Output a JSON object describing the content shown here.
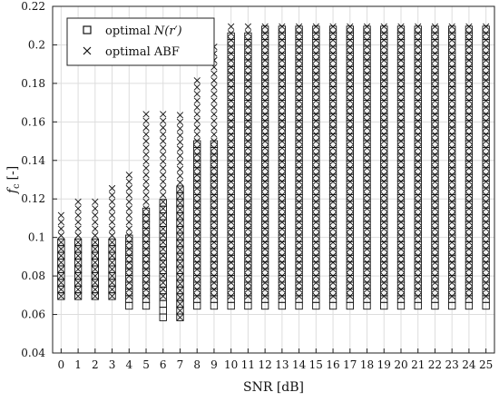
{
  "chart_data": {
    "type": "scatter",
    "title": "",
    "xlabel": "SNR [dB]",
    "ylabel": "f_c [-]",
    "ylabel_main": "f",
    "ylabel_sub": "c",
    "ylabel_unit": "[-]",
    "xlim": [
      -0.5,
      25.5
    ],
    "ylim": [
      0.04,
      0.22
    ],
    "grid": true,
    "legend_position": "top-left",
    "x_ticks": [
      "0",
      "1",
      "2",
      "3",
      "4",
      "5",
      "6",
      "7",
      "8",
      "9",
      "10",
      "11",
      "12",
      "13",
      "14",
      "15",
      "16",
      "17",
      "18",
      "19",
      "20",
      "21",
      "22",
      "23",
      "24",
      "25"
    ],
    "y_ticks": [
      "0.04",
      "0.06",
      "0.08",
      "0.1",
      "0.12",
      "0.14",
      "0.16",
      "0.18",
      "0.2",
      "0.22"
    ],
    "series": [
      {
        "name": "optimal N(r′)",
        "legend_prefix": "optimal ",
        "legend_math": "N(r′)",
        "marker": "square",
        "ranges": [
          {
            "x": 0,
            "y_min": 0.0695,
            "y_max": 0.1005
          },
          {
            "x": 1,
            "y_min": 0.0695,
            "y_max": 0.1005
          },
          {
            "x": 2,
            "y_min": 0.0695,
            "y_max": 0.1005
          },
          {
            "x": 3,
            "y_min": 0.0695,
            "y_max": 0.1005
          },
          {
            "x": 4,
            "y_min": 0.0645,
            "y_max": 0.1005
          },
          {
            "x": 5,
            "y_min": 0.0645,
            "y_max": 0.1155
          },
          {
            "x": 6,
            "y_min": 0.0585,
            "y_max": 0.1205
          },
          {
            "x": 7,
            "y_min": 0.0585,
            "y_max": 0.1255
          },
          {
            "x": 8,
            "y_min": 0.0645,
            "y_max": 0.1505
          },
          {
            "x": 9,
            "y_min": 0.0645,
            "y_max": 0.1505
          },
          {
            "x": 10,
            "y_min": 0.0645,
            "y_max": 0.2055
          },
          {
            "x": 11,
            "y_min": 0.0645,
            "y_max": 0.2055
          },
          {
            "x": 12,
            "y_min": 0.0645,
            "y_max": 0.2105
          },
          {
            "x": 13,
            "y_min": 0.0645,
            "y_max": 0.2105
          },
          {
            "x": 14,
            "y_min": 0.0645,
            "y_max": 0.2105
          },
          {
            "x": 15,
            "y_min": 0.0645,
            "y_max": 0.2105
          },
          {
            "x": 16,
            "y_min": 0.0645,
            "y_max": 0.2105
          },
          {
            "x": 17,
            "y_min": 0.0645,
            "y_max": 0.2105
          },
          {
            "x": 18,
            "y_min": 0.0645,
            "y_max": 0.2105
          },
          {
            "x": 19,
            "y_min": 0.0645,
            "y_max": 0.2105
          },
          {
            "x": 20,
            "y_min": 0.0645,
            "y_max": 0.2105
          },
          {
            "x": 21,
            "y_min": 0.0645,
            "y_max": 0.2105
          },
          {
            "x": 22,
            "y_min": 0.0645,
            "y_max": 0.2105
          },
          {
            "x": 23,
            "y_min": 0.0645,
            "y_max": 0.2105
          },
          {
            "x": 24,
            "y_min": 0.0645,
            "y_max": 0.2105
          },
          {
            "x": 25,
            "y_min": 0.0645,
            "y_max": 0.2105
          }
        ]
      },
      {
        "name": "optimal ABF",
        "marker": "x",
        "ranges": [
          {
            "x": 0,
            "y_min": 0.0695,
            "y_max": 0.1125
          },
          {
            "x": 1,
            "y_min": 0.0695,
            "y_max": 0.1205
          },
          {
            "x": 2,
            "y_min": 0.0695,
            "y_max": 0.1205
          },
          {
            "x": 3,
            "y_min": 0.0695,
            "y_max": 0.1275
          },
          {
            "x": 4,
            "y_min": 0.0695,
            "y_max": 0.1335
          },
          {
            "x": 5,
            "y_min": 0.0695,
            "y_max": 0.1655
          },
          {
            "x": 6,
            "y_min": 0.0695,
            "y_max": 0.1655
          },
          {
            "x": 7,
            "y_min": 0.0585,
            "y_max": 0.1655
          },
          {
            "x": 8,
            "y_min": 0.0695,
            "y_max": 0.1845
          },
          {
            "x": 9,
            "y_min": 0.0695,
            "y_max": 0.2005
          },
          {
            "x": 10,
            "y_min": 0.0695,
            "y_max": 0.2105
          },
          {
            "x": 11,
            "y_min": 0.0695,
            "y_max": 0.2105
          },
          {
            "x": 12,
            "y_min": 0.0695,
            "y_max": 0.2105
          },
          {
            "x": 13,
            "y_min": 0.0695,
            "y_max": 0.2105
          },
          {
            "x": 14,
            "y_min": 0.0695,
            "y_max": 0.2105
          },
          {
            "x": 15,
            "y_min": 0.0695,
            "y_max": 0.2105
          },
          {
            "x": 16,
            "y_min": 0.0695,
            "y_max": 0.2105
          },
          {
            "x": 17,
            "y_min": 0.0695,
            "y_max": 0.2105
          },
          {
            "x": 18,
            "y_min": 0.0695,
            "y_max": 0.2105
          },
          {
            "x": 19,
            "y_min": 0.0695,
            "y_max": 0.2105
          },
          {
            "x": 20,
            "y_min": 0.0695,
            "y_max": 0.2105
          },
          {
            "x": 21,
            "y_min": 0.0695,
            "y_max": 0.2105
          },
          {
            "x": 22,
            "y_min": 0.0695,
            "y_max": 0.2105
          },
          {
            "x": 23,
            "y_min": 0.0695,
            "y_max": 0.2105
          },
          {
            "x": 24,
            "y_min": 0.0695,
            "y_max": 0.2105
          },
          {
            "x": 25,
            "y_min": 0.0695,
            "y_max": 0.2105
          }
        ]
      }
    ]
  }
}
